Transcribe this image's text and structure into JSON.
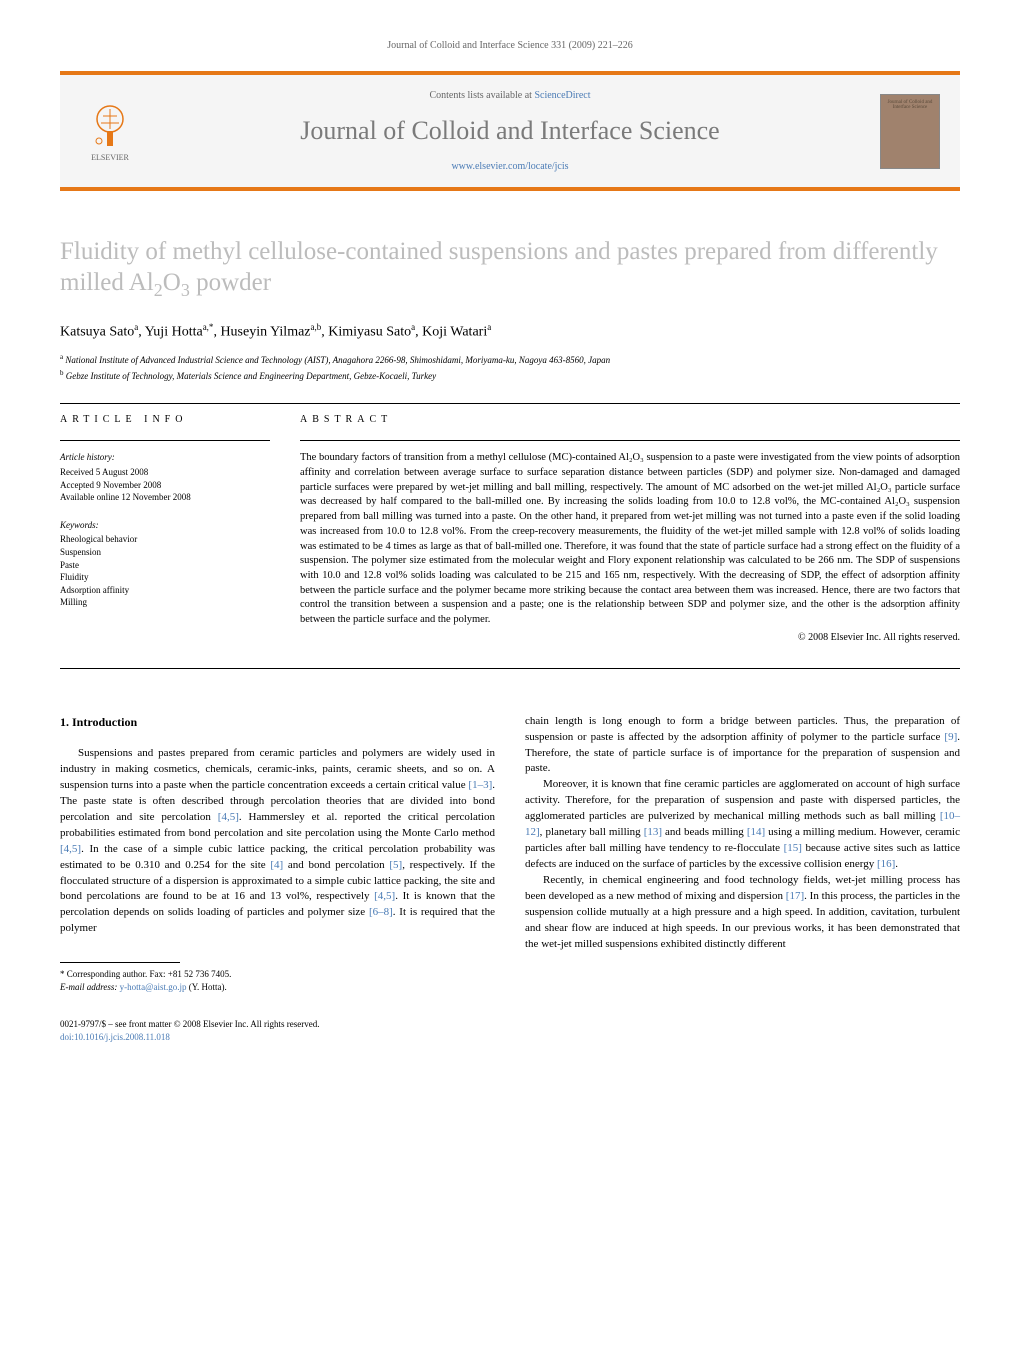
{
  "page_header": "Journal of Colloid and Interface Science 331 (2009) 221–226",
  "banner": {
    "contents_text": "Contents lists available at ",
    "contents_link": "ScienceDirect",
    "journal_name": "Journal of Colloid and Interface Science",
    "url": "www.elsevier.com/locate/jcis",
    "publisher": "ELSEVIER",
    "cover_text": "Journal of Colloid and Interface Science"
  },
  "article": {
    "title_pre": "Fluidity of methyl cellulose-contained suspensions and pastes prepared from differently milled Al",
    "title_sub1": "2",
    "title_mid": "O",
    "title_sub2": "3",
    "title_post": " powder",
    "authors_html": "Katsuya Sato<sup class=\"author-sup\">a</sup>, Yuji Hotta<sup class=\"author-sup\">a,*</sup>, Huseyin Yilmaz<sup class=\"author-sup\">a,b</sup>, Kimiyasu Sato<sup class=\"author-sup\">a</sup>, Koji Watari<sup class=\"author-sup\">a</sup>",
    "affiliations": [
      {
        "sup": "a",
        "text": "National Institute of Advanced Industrial Science and Technology (AIST), Anagahora 2266-98, Shimoshidami, Moriyama-ku, Nagoya 463-8560, Japan"
      },
      {
        "sup": "b",
        "text": "Gebze Institute of Technology, Materials Science and Engineering Department, Gebze-Kocaeli, Turkey"
      }
    ]
  },
  "info": {
    "heading": "ARTICLE INFO",
    "history_label": "Article history:",
    "history": [
      "Received 5 August 2008",
      "Accepted 9 November 2008",
      "Available online 12 November 2008"
    ],
    "keywords_label": "Keywords:",
    "keywords": [
      "Rheological behavior",
      "Suspension",
      "Paste",
      "Fluidity",
      "Adsorption affinity",
      "Milling"
    ]
  },
  "abstract": {
    "heading": "ABSTRACT",
    "text": "The boundary factors of transition from a methyl cellulose (MC)-contained Al₂O₃ suspension to a paste were investigated from the view points of adsorption affinity and correlation between average surface to surface separation distance between particles (SDP) and polymer size. Non-damaged and damaged particle surfaces were prepared by wet-jet milling and ball milling, respectively. The amount of MC adsorbed on the wet-jet milled Al₂O₃ particle surface was decreased by half compared to the ball-milled one. By increasing the solids loading from 10.0 to 12.8 vol%, the MC-contained Al₂O₃ suspension prepared from ball milling was turned into a paste. On the other hand, it prepared from wet-jet milling was not turned into a paste even if the solid loading was increased from 10.0 to 12.8 vol%. From the creep-recovery measurements, the fluidity of the wet-jet milled sample with 12.8 vol% of solids loading was estimated to be 4 times as large as that of ball-milled one. Therefore, it was found that the state of particle surface had a strong effect on the fluidity of a suspension. The polymer size estimated from the molecular weight and Flory exponent relationship was calculated to be 266 nm. The SDP of suspensions with 10.0 and 12.8 vol% solids loading was calculated to be 215 and 165 nm, respectively. With the decreasing of SDP, the effect of adsorption affinity between the particle surface and the polymer became more striking because the contact area between them was increased. Hence, there are two factors that control the transition between a suspension and a paste; one is the relationship between SDP and polymer size, and the other is the adsorption affinity between the particle surface and the polymer.",
    "copyright": "© 2008 Elsevier Inc. All rights reserved."
  },
  "body": {
    "intro_heading": "1. Introduction",
    "col1_p1": "Suspensions and pastes prepared from ceramic particles and polymers are widely used in industry in making cosmetics, chemicals, ceramic-inks, paints, ceramic sheets, and so on. A suspension turns into a paste when the particle concentration exceeds a certain critical value [1–3]. The paste state is often described through percolation theories that are divided into bond percolation and site percolation [4,5]. Hammersley et al. reported the critical percolation probabilities estimated from bond percolation and site percolation using the Monte Carlo method [4,5]. In the case of a simple cubic lattice packing, the critical percolation probability was estimated to be 0.310 and 0.254 for the site [4] and bond percolation [5], respectively. If the flocculated structure of a dispersion is approximated to a simple cubic lattice packing, the site and bond percolations are found to be at 16 and 13 vol%, respectively [4,5]. It is known that the percolation depends on solids loading of particles and polymer size [6–8]. It is required that the polymer",
    "col2_p1": "chain length is long enough to form a bridge between particles. Thus, the preparation of suspension or paste is affected by the adsorption affinity of polymer to the particle surface [9]. Therefore, the state of particle surface is of importance for the preparation of suspension and paste.",
    "col2_p2": "Moreover, it is known that fine ceramic particles are agglomerated on account of high surface activity. Therefore, for the preparation of suspension and paste with dispersed particles, the agglomerated particles are pulverized by mechanical milling methods such as ball milling [10–12], planetary ball milling [13] and beads milling [14] using a milling medium. However, ceramic particles after ball milling have tendency to re-flocculate [15] because active sites such as lattice defects are induced on the surface of particles by the excessive collision energy [16].",
    "col2_p3": "Recently, in chemical engineering and food technology fields, wet-jet milling process has been developed as a new method of mixing and dispersion [17]. In this process, the particles in the suspension collide mutually at a high pressure and a high speed. In addition, cavitation, turbulent and shear flow are induced at high speeds. In our previous works, it has been demonstrated that the wet-jet milled suspensions exhibited distinctly different"
  },
  "footnotes": {
    "corr": "* Corresponding author. Fax: +81 52 736 7405.",
    "email_label": "E-mail address: ",
    "email": "y-hotta@aist.go.jp",
    "email_suffix": " (Y. Hotta)."
  },
  "bottom": {
    "line1": "0021-9797/$ – see front matter © 2008 Elsevier Inc. All rights reserved.",
    "doi_label": "doi:",
    "doi": "10.1016/j.jcis.2008.11.018"
  },
  "colors": {
    "accent": "#e67817",
    "title_gray": "#bcbcbc",
    "link": "#4a7bb5",
    "banner_bg": "#f5f5f5"
  }
}
